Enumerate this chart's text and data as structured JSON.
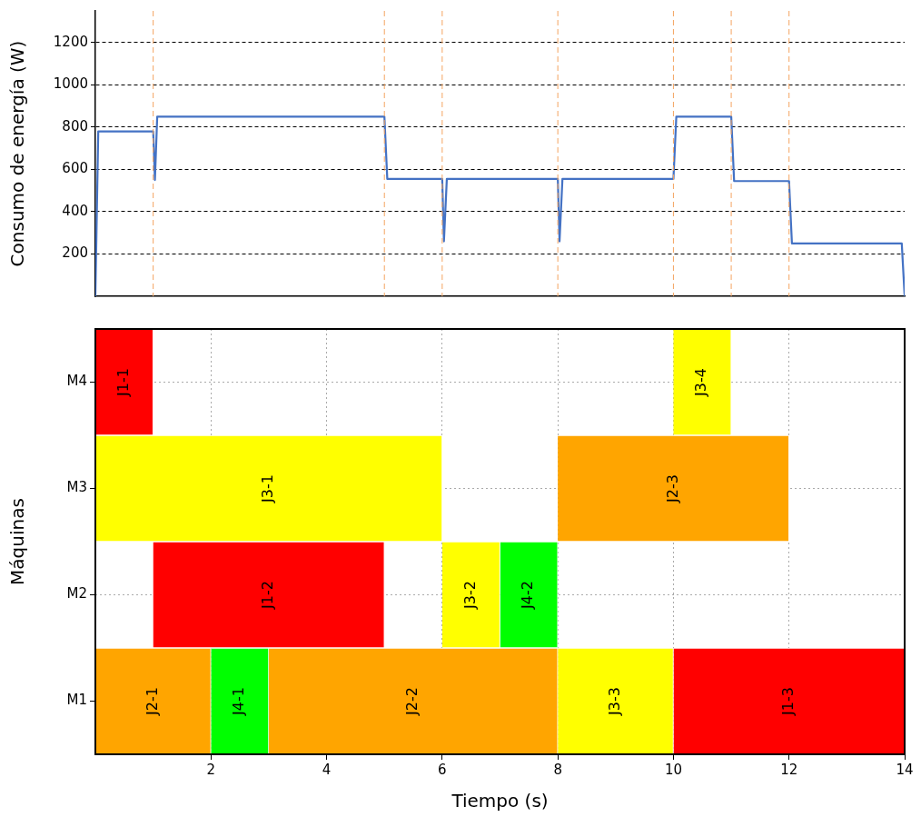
{
  "chart_data": [
    {
      "type": "line",
      "ylabel": "Consumo de energía (W)",
      "x": [
        0,
        0.05,
        1,
        1.03,
        1.07,
        5,
        5.05,
        6,
        6.03,
        6.08,
        8,
        8.03,
        8.08,
        10,
        10.05,
        11,
        11.05,
        12,
        12.05,
        13.95,
        14
      ],
      "series": [
        {
          "color": "#4472c4",
          "values": [
            0,
            780,
            780,
            550,
            850,
            850,
            555,
            555,
            260,
            555,
            555,
            260,
            555,
            555,
            850,
            850,
            545,
            545,
            250,
            250,
            0
          ]
        }
      ],
      "xlim": [
        0,
        14
      ],
      "ylim": [
        0,
        1350
      ],
      "yticks": [
        200,
        400,
        600,
        800,
        1000,
        1200
      ],
      "grid": "y",
      "tick_labels": "y",
      "ref_lines": [
        {
          "axis": "x",
          "value": 1,
          "color": "#f4a460",
          "line_style": "dashed"
        },
        {
          "axis": "x",
          "value": 5,
          "color": "#f4a460",
          "line_style": "dashed"
        },
        {
          "axis": "x",
          "value": 6,
          "color": "#f4a460",
          "line_style": "dashed"
        },
        {
          "axis": "x",
          "value": 8,
          "color": "#f4a460",
          "line_style": "dashed"
        },
        {
          "axis": "x",
          "value": 10,
          "color": "#f4a460",
          "line_style": "dashed"
        },
        {
          "axis": "x",
          "value": 11,
          "color": "#f4a460",
          "line_style": "dashed"
        },
        {
          "axis": "x",
          "value": 12,
          "color": "#f4a460",
          "line_style": "dashed"
        }
      ]
    },
    {
      "type": "bar",
      "orientation": "horizontal",
      "xlabel": "Tiempo (s)",
      "ylabel": "Máquinas",
      "categories": [
        "M4",
        "M3",
        "M2",
        "M1"
      ],
      "series": [
        {
          "values": [
            1,
            6,
            4,
            2
          ],
          "base": [
            0,
            0,
            1,
            0
          ],
          "colors": [
            "#ff0000",
            "#ffff00",
            "#ff0000",
            "#ffa500"
          ],
          "value_labels": [
            "J1-1",
            "J3-1",
            "J1-2",
            "J2-1"
          ]
        },
        {
          "values": [
            1,
            4,
            1,
            1
          ],
          "base": [
            10,
            8,
            6,
            2
          ],
          "colors": [
            "#ffff00",
            "#ffa500",
            "#ffff00",
            "#00ff00"
          ],
          "value_labels": [
            "J3-4",
            "J2-3",
            "J3-2",
            "J4-1"
          ]
        },
        {
          "values": [
            null,
            null,
            1,
            5
          ],
          "base": [
            null,
            null,
            7,
            3
          ],
          "colors": [
            "#ffffff",
            "#ffffff",
            "#00ff00",
            "#ffa500"
          ],
          "value_labels": [
            null,
            null,
            "J4-2",
            "J2-2"
          ]
        },
        {
          "values": [
            null,
            null,
            null,
            2
          ],
          "base": [
            null,
            null,
            null,
            8
          ],
          "colors": [
            "#ffffff",
            "#ffffff",
            "#ffffff",
            "#ffff00"
          ],
          "value_labels": [
            null,
            null,
            null,
            "J3-3"
          ]
        },
        {
          "values": [
            null,
            null,
            null,
            4
          ],
          "base": [
            null,
            null,
            null,
            10
          ],
          "colors": [
            "#ffffff",
            "#ffffff",
            "#ffffff",
            "#ff0000"
          ],
          "value_labels": [
            null,
            null,
            null,
            "J1-3"
          ]
        }
      ],
      "xlim": [
        0,
        14
      ],
      "xticks": [
        2,
        4,
        6,
        8,
        10,
        12,
        14
      ],
      "grid": true
    }
  ]
}
